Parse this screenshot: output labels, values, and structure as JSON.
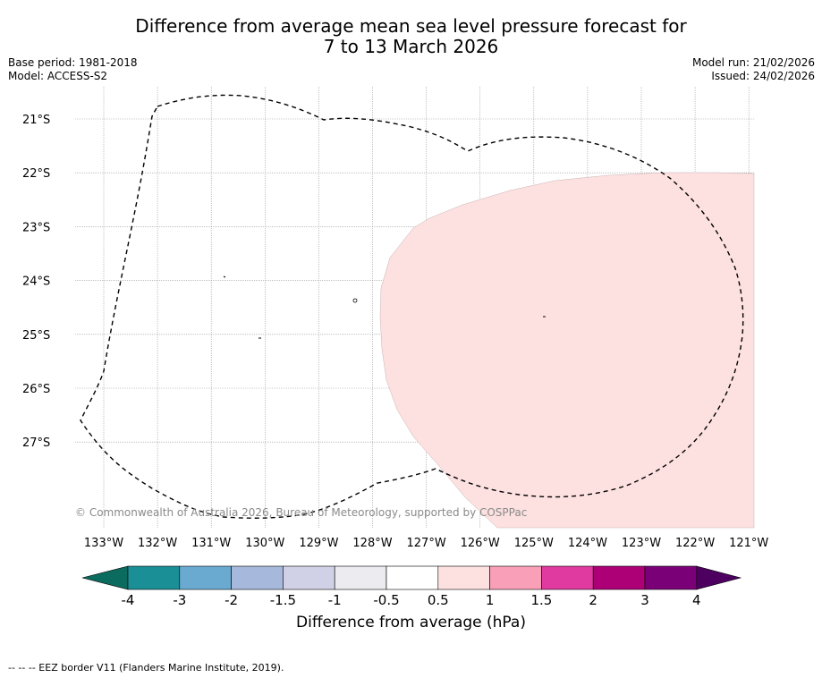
{
  "title_line1": "Difference from average mean sea level pressure forecast for",
  "title_line2": "7 to 13 March 2026",
  "base_period": "Base period: 1981-2018",
  "model": "Model: ACCESS-S2",
  "model_run": "Model run: 21/02/2026",
  "issued": "Issued: 24/02/2026",
  "copyright": "© Commonwealth of Australia 2026, Bureau of Meteorology, supported by COSPPac",
  "footnote": "--  --  -- EEZ border V11 (Flanders Marine Institute, 2019).",
  "lat_labels": [
    "21°S",
    "22°S",
    "23°S",
    "24°S",
    "25°S",
    "26°S",
    "27°S"
  ],
  "lon_labels": [
    "133°W",
    "132°W",
    "131°W",
    "130°W",
    "129°W",
    "128°W",
    "127°W",
    "126°W",
    "125°W",
    "124°W",
    "123°W",
    "122°W",
    "121°W"
  ],
  "colorbar": {
    "label": "Difference from average (hPa)",
    "tick_labels": [
      "-4",
      "-3",
      "-2",
      "-1.5",
      "-1",
      "-0.5",
      "0.5",
      "1",
      "1.5",
      "2",
      "3",
      "4"
    ],
    "colors": [
      "#1b8f96",
      "#6aaad1",
      "#a6b9dc",
      "#d0d1e6",
      "#ecebef",
      "#ffffff",
      "#fde0e0",
      "#f9a0b8",
      "#e0399f",
      "#ad0077",
      "#7a0077"
    ],
    "low_extend_color": "#0b6b5e",
    "high_extend_color": "#4d005f"
  },
  "anomaly_region_color": "#fde0e0",
  "anomaly_region_value": "0.5 to 1"
}
